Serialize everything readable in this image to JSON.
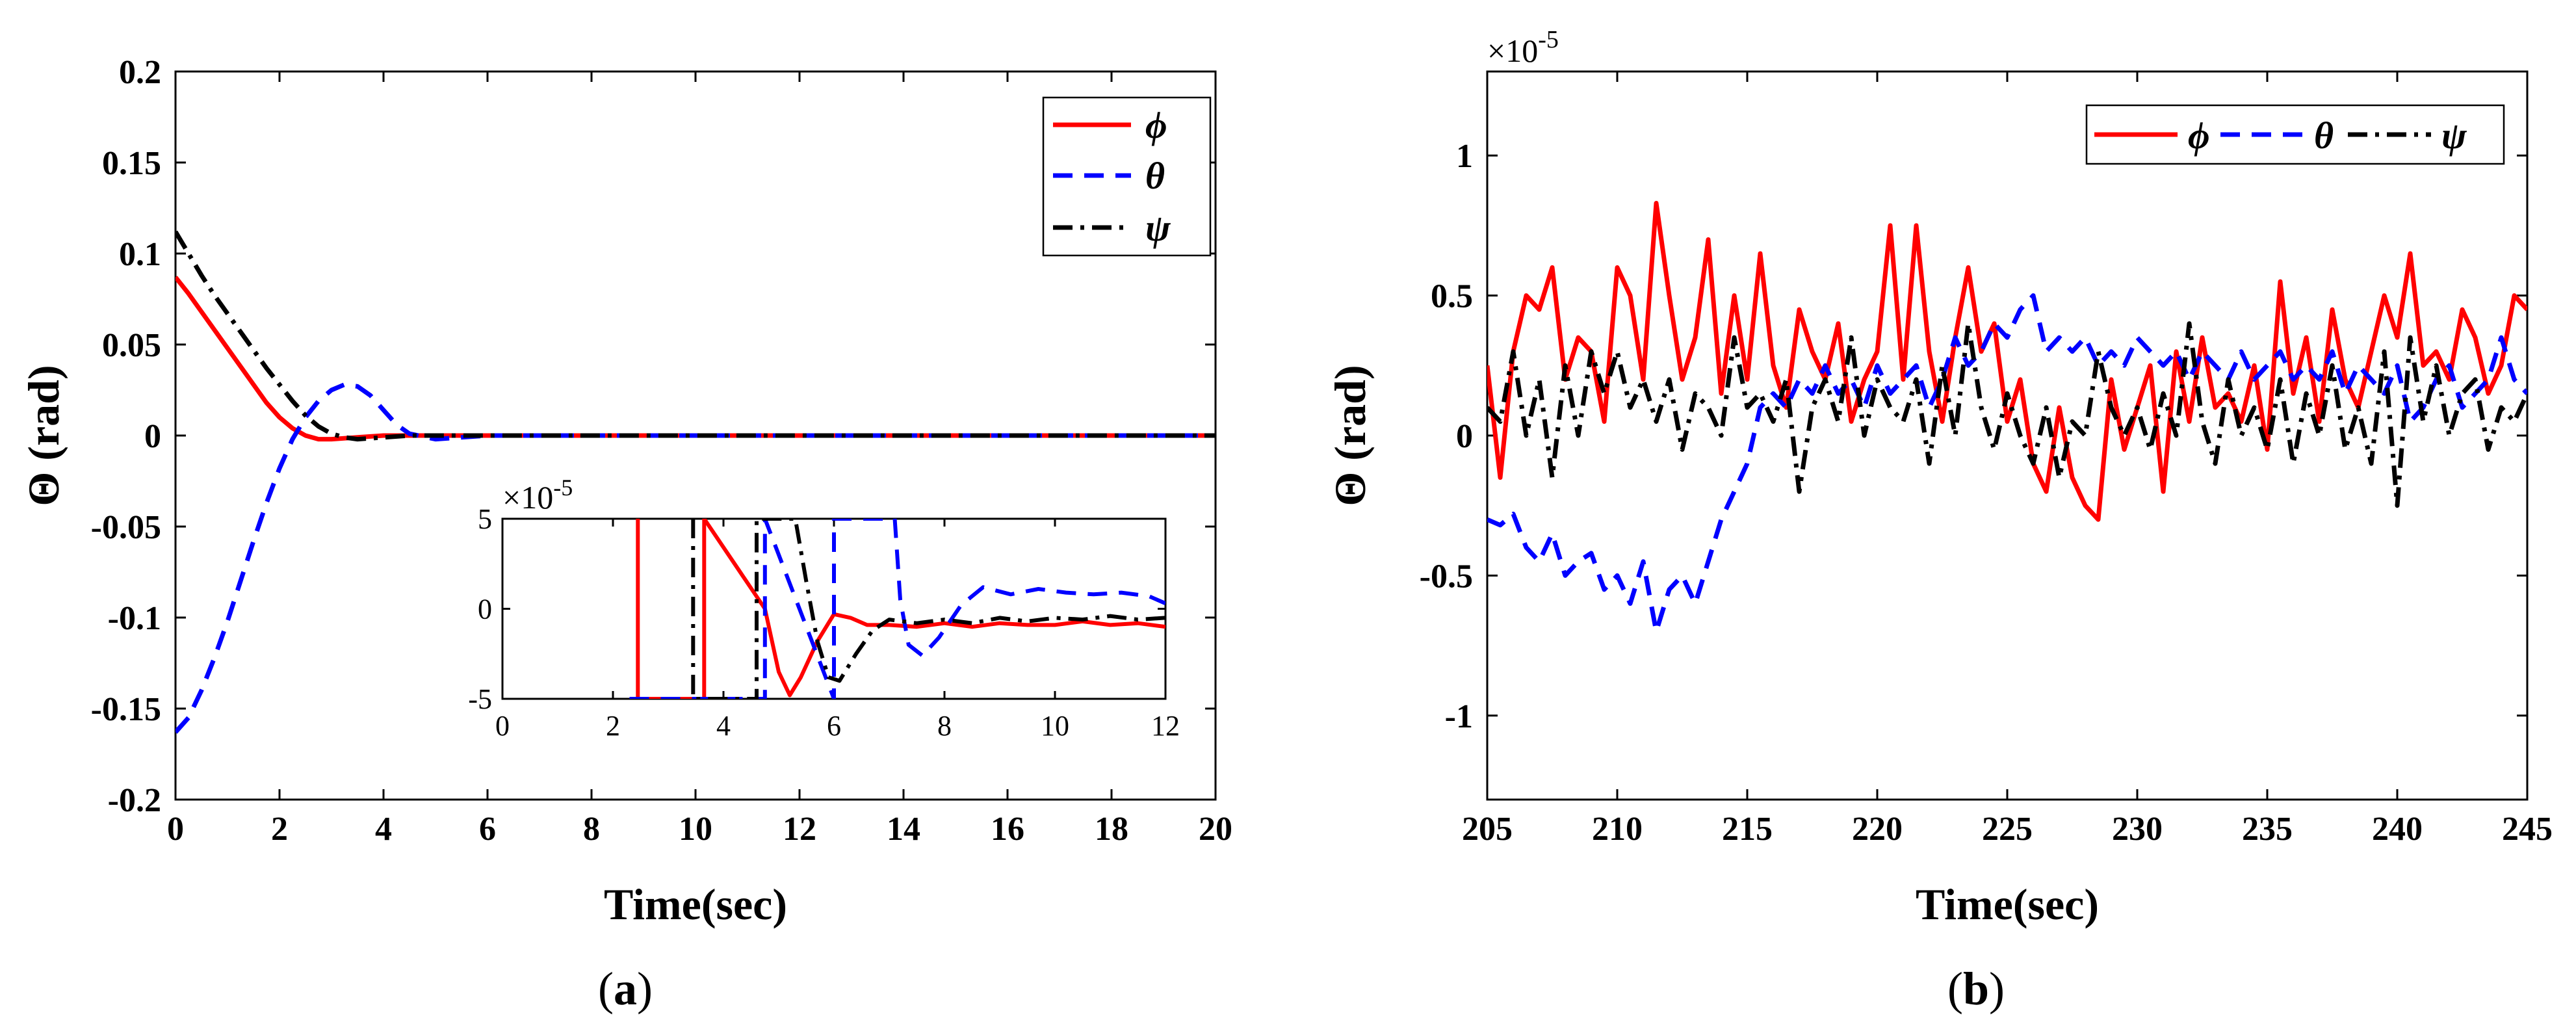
{
  "chart_data": [
    {
      "id": "a",
      "type": "line",
      "caption": "(a)",
      "xlabel": "Time(sec)",
      "ylabel": "Θ (rad)",
      "xlim": [
        0,
        20
      ],
      "ylim": [
        -0.2,
        0.2
      ],
      "xticks": [
        "0",
        "2",
        "4",
        "6",
        "8",
        "10",
        "12",
        "14",
        "16",
        "18",
        "20"
      ],
      "yticks": [
        "0.2",
        "0.15",
        "0.1",
        "0.05",
        "0",
        "-0.05",
        "-0.1",
        "-0.15",
        "-0.2"
      ],
      "legend_position": "top-right",
      "series": [
        {
          "name": "ϕ",
          "color": "#ff0000",
          "style": "solid",
          "x": [
            0,
            0.25,
            0.5,
            0.75,
            1,
            1.25,
            1.5,
            1.75,
            2,
            2.25,
            2.5,
            2.75,
            3,
            3.5,
            4,
            5,
            20
          ],
          "y": [
            0.087,
            0.078,
            0.068,
            0.058,
            0.048,
            0.038,
            0.028,
            0.018,
            0.01,
            0.004,
            0.0,
            -0.002,
            -0.002,
            -0.001,
            0.0,
            0,
            0
          ]
        },
        {
          "name": "θ",
          "color": "#0000ff",
          "style": "dashed",
          "x": [
            0,
            0.25,
            0.5,
            0.75,
            1,
            1.25,
            1.5,
            1.75,
            2,
            2.25,
            2.5,
            2.75,
            3,
            3.25,
            3.5,
            3.75,
            4,
            4.25,
            4.5,
            5,
            5.5,
            6,
            20
          ],
          "y": [
            -0.163,
            -0.155,
            -0.14,
            -0.122,
            -0.102,
            -0.08,
            -0.058,
            -0.037,
            -0.018,
            -0.002,
            0.01,
            0.019,
            0.025,
            0.028,
            0.027,
            0.022,
            0.014,
            0.006,
            0.001,
            -0.002,
            -0.001,
            0,
            0
          ]
        },
        {
          "name": "ψ",
          "color": "#000000",
          "style": "dashdot",
          "x": [
            0,
            0.25,
            0.5,
            0.75,
            1,
            1.25,
            1.5,
            1.75,
            2,
            2.25,
            2.5,
            2.75,
            3,
            3.25,
            3.5,
            4,
            4.5,
            20
          ],
          "y": [
            0.112,
            0.1,
            0.088,
            0.077,
            0.067,
            0.057,
            0.047,
            0.037,
            0.028,
            0.019,
            0.011,
            0.005,
            0.001,
            -0.001,
            -0.002,
            -0.001,
            0,
            0
          ]
        }
      ],
      "inset": {
        "xlim": [
          0,
          12
        ],
        "ylim": [
          -5,
          5
        ],
        "multiplier": "×10",
        "multiplier_exp": "-5",
        "xticks": [
          "0",
          "2",
          "4",
          "6",
          "8",
          "10",
          "12"
        ],
        "yticks": [
          "5",
          "0",
          "-5"
        ],
        "series": [
          {
            "name": "ϕ",
            "color": "#ff0000",
            "style": "solid",
            "x": [
              2.45,
              2.45,
              3.65,
              3.65,
              4.75,
              5.0,
              5.2,
              5.4,
              5.7,
              6.0,
              6.3,
              6.6,
              7.0,
              7.5,
              8,
              8.5,
              9,
              9.5,
              10,
              10.5,
              11,
              11.5,
              12
            ],
            "y": [
              5,
              -5,
              -5,
              5,
              0.0,
              -3.5,
              -4.8,
              -3.8,
              -1.8,
              -0.3,
              -0.5,
              -0.9,
              -0.9,
              -1.0,
              -0.8,
              -1.0,
              -0.8,
              -0.9,
              -0.9,
              -0.7,
              -0.9,
              -0.8,
              -1.0
            ]
          },
          {
            "name": "θ",
            "color": "#0000ff",
            "style": "dashed",
            "x": [
              2.3,
              2.3,
              4.75,
              4.75,
              6.0,
              6.0,
              7.1,
              7.2,
              7.35,
              7.6,
              7.9,
              8.3,
              8.7,
              9.2,
              9.7,
              10.2,
              10.7,
              11.2,
              11.7,
              12
            ],
            "y": [
              -5,
              -5,
              -5,
              5,
              -5,
              5,
              5,
              0.5,
              -2.0,
              -2.6,
              -1.6,
              0.2,
              1.2,
              0.8,
              1.1,
              0.9,
              0.8,
              0.9,
              0.7,
              0.3
            ]
          },
          {
            "name": "ψ",
            "color": "#000000",
            "style": "dashdot",
            "x": [
              3.45,
              3.45,
              4.6,
              4.6,
              5.3,
              5.5,
              5.7,
              5.9,
              6.1,
              6.4,
              6.7,
              7.0,
              7.5,
              8,
              8.5,
              9,
              9.5,
              10,
              10.5,
              11,
              11.5,
              12
            ],
            "y": [
              5,
              -5,
              -5,
              5,
              5,
              1.5,
              -1.8,
              -3.8,
              -4.0,
              -2.5,
              -1.2,
              -0.6,
              -0.8,
              -0.6,
              -0.8,
              -0.5,
              -0.7,
              -0.5,
              -0.6,
              -0.4,
              -0.6,
              -0.5
            ]
          }
        ]
      }
    },
    {
      "id": "b",
      "type": "line",
      "caption": "(b)",
      "xlabel": "Time(sec)",
      "ylabel": "Θ (rad)",
      "multiplier": "×10",
      "multiplier_exp": "-5",
      "xlim": [
        205,
        245
      ],
      "ylim": [
        -1.3,
        1.3
      ],
      "xticks": [
        "205",
        "210",
        "215",
        "220",
        "225",
        "230",
        "235",
        "240",
        "245"
      ],
      "yticks": [
        "1",
        "0.5",
        "0",
        "-0.5",
        "-1"
      ],
      "legend_position": "top-right",
      "series": [
        {
          "name": "ϕ",
          "color": "#ff0000",
          "style": "solid",
          "x": [
            205,
            205.5,
            206,
            206.5,
            207,
            207.5,
            208,
            208.5,
            209,
            209.5,
            210,
            210.5,
            211,
            211.5,
            212,
            212.5,
            213,
            213.5,
            214,
            214.5,
            215,
            215.5,
            216,
            216.5,
            217,
            217.5,
            218,
            218.5,
            219,
            219.5,
            220,
            220.5,
            221,
            221.5,
            222,
            222.5,
            223,
            223.5,
            224,
            224.5,
            225,
            225.5,
            226,
            226.5,
            227,
            227.5,
            228,
            228.5,
            229,
            229.5,
            230,
            230.5,
            231,
            231.5,
            232,
            232.5,
            233,
            233.5,
            234,
            234.5,
            235,
            235.5,
            236,
            236.5,
            237,
            237.5,
            238,
            238.5,
            239,
            239.5,
            240,
            240.5,
            241,
            241.5,
            242,
            242.5,
            243,
            243.5,
            244,
            244.5,
            245
          ],
          "y": [
            0.25,
            -0.15,
            0.3,
            0.5,
            0.45,
            0.6,
            0.2,
            0.35,
            0.3,
            0.05,
            0.6,
            0.5,
            0.2,
            0.83,
            0.5,
            0.2,
            0.35,
            0.7,
            0.15,
            0.5,
            0.2,
            0.65,
            0.25,
            0.1,
            0.45,
            0.3,
            0.2,
            0.4,
            0.05,
            0.2,
            0.3,
            0.75,
            0.2,
            0.75,
            0.3,
            0.05,
            0.35,
            0.6,
            0.3,
            0.4,
            0.05,
            0.2,
            -0.1,
            -0.2,
            0.1,
            -0.15,
            -0.25,
            -0.3,
            0.2,
            -0.05,
            0.1,
            0.25,
            -0.2,
            0.3,
            0.05,
            0.35,
            0.1,
            0.15,
            0.05,
            0.25,
            -0.05,
            0.55,
            0.15,
            0.35,
            0.05,
            0.45,
            0.2,
            0.1,
            0.3,
            0.5,
            0.35,
            0.65,
            0.25,
            0.3,
            0.2,
            0.45,
            0.35,
            0.15,
            0.25,
            0.5,
            0.45
          ]
        },
        {
          "name": "θ",
          "color": "#0000ff",
          "style": "dashed",
          "x": [
            205,
            205.5,
            206,
            206.5,
            207,
            207.5,
            208,
            208.5,
            209,
            209.5,
            210,
            210.5,
            211,
            211.5,
            212,
            212.5,
            213,
            213.5,
            214,
            214.5,
            215,
            215.5,
            216,
            216.5,
            217,
            217.5,
            218,
            218.5,
            219,
            219.5,
            220,
            220.5,
            221,
            221.5,
            222,
            222.5,
            223,
            223.5,
            224,
            224.5,
            225,
            225.5,
            226,
            226.5,
            227,
            227.5,
            228,
            228.5,
            229,
            229.5,
            230,
            230.5,
            231,
            231.5,
            232,
            232.5,
            233,
            233.5,
            234,
            234.5,
            235,
            235.5,
            236,
            236.5,
            237,
            237.5,
            238,
            238.5,
            239,
            239.5,
            240,
            240.5,
            241,
            241.5,
            242,
            242.5,
            243,
            243.5,
            244,
            244.5,
            245
          ],
          "y": [
            -0.3,
            -0.32,
            -0.28,
            -0.4,
            -0.45,
            -0.35,
            -0.5,
            -0.45,
            -0.42,
            -0.55,
            -0.5,
            -0.6,
            -0.45,
            -0.7,
            -0.55,
            -0.5,
            -0.6,
            -0.45,
            -0.3,
            -0.2,
            -0.1,
            0.1,
            0.15,
            0.1,
            0.2,
            0.15,
            0.25,
            0.15,
            0.2,
            0.1,
            0.25,
            0.15,
            0.2,
            0.25,
            0.1,
            0.2,
            0.35,
            0.25,
            0.3,
            0.4,
            0.35,
            0.45,
            0.5,
            0.3,
            0.35,
            0.3,
            0.35,
            0.25,
            0.3,
            0.25,
            0.35,
            0.3,
            0.25,
            0.3,
            0.2,
            0.3,
            0.25,
            0.2,
            0.3,
            0.2,
            0.25,
            0.3,
            0.2,
            0.25,
            0.2,
            0.3,
            0.15,
            0.25,
            0.2,
            0.15,
            0.25,
            0.05,
            0.1,
            0.2,
            0.25,
            0.1,
            0.15,
            0.2,
            0.35,
            0.2,
            0.15
          ]
        },
        {
          "name": "ψ",
          "color": "#000000",
          "style": "dashdot",
          "x": [
            205,
            205.5,
            206,
            206.5,
            207,
            207.5,
            208,
            208.5,
            209,
            209.5,
            210,
            210.5,
            211,
            211.5,
            212,
            212.5,
            213,
            213.5,
            214,
            214.5,
            215,
            215.5,
            216,
            216.5,
            217,
            217.5,
            218,
            218.5,
            219,
            219.5,
            220,
            220.5,
            221,
            221.5,
            222,
            222.5,
            223,
            223.5,
            224,
            224.5,
            225,
            225.5,
            226,
            226.5,
            227,
            227.5,
            228,
            228.5,
            229,
            229.5,
            230,
            230.5,
            231,
            231.5,
            232,
            232.5,
            233,
            233.5,
            234,
            234.5,
            235,
            235.5,
            236,
            236.5,
            237,
            237.5,
            238,
            238.5,
            239,
            239.5,
            240,
            240.5,
            241,
            241.5,
            242,
            242.5,
            243,
            243.5,
            244,
            244.5,
            245
          ],
          "y": [
            0.1,
            0.05,
            0.3,
            0.0,
            0.2,
            -0.15,
            0.25,
            0.0,
            0.3,
            0.15,
            0.3,
            0.1,
            0.2,
            0.05,
            0.2,
            -0.05,
            0.15,
            0.1,
            0.0,
            0.35,
            0.1,
            0.15,
            0.05,
            0.2,
            -0.2,
            0.1,
            0.2,
            0.05,
            0.35,
            0.0,
            0.2,
            0.1,
            0.05,
            0.2,
            -0.1,
            0.25,
            0.0,
            0.4,
            0.1,
            -0.05,
            0.15,
            0.0,
            -0.1,
            0.1,
            -0.15,
            0.05,
            0.0,
            0.3,
            0.1,
            0.0,
            0.1,
            -0.05,
            0.15,
            0.0,
            0.4,
            0.05,
            -0.1,
            0.2,
            0.0,
            0.1,
            -0.05,
            0.2,
            -0.1,
            0.15,
            0.0,
            0.25,
            -0.05,
            0.1,
            -0.1,
            0.3,
            -0.25,
            0.35,
            0.05,
            0.25,
            0.0,
            0.15,
            0.2,
            -0.05,
            0.1,
            0.05,
            0.15
          ]
        }
      ]
    }
  ]
}
